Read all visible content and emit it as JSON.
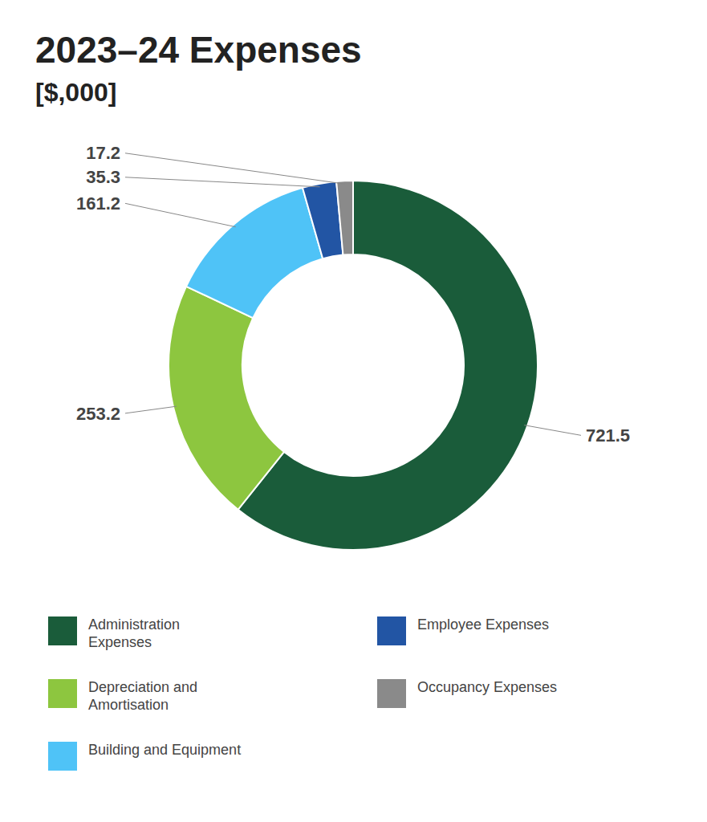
{
  "chart_data": {
    "type": "donut",
    "title": "2023–24 Expenses",
    "subtitle": "[$,000]",
    "categories": [
      "Administration\nExpenses",
      "Depreciation and\nAmortisation",
      "Building and Equipment",
      "Employee Expenses",
      "Occupancy Expenses"
    ],
    "values": [
      721.5,
      253.2,
      161.2,
      35.3,
      17.2
    ],
    "colors": [
      "#1a5c3a",
      "#8dc63f",
      "#4fc3f7",
      "#2255a4",
      "#8a8a8a"
    ],
    "data_labels": true,
    "legend": "bottom"
  }
}
